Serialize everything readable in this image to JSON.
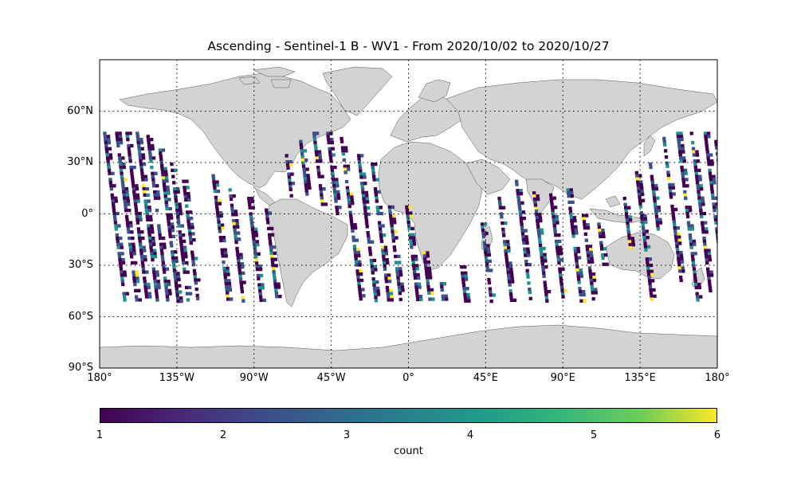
{
  "chart_data": {
    "type": "heatmap",
    "title": "Ascending - Sentinel-1 B - WV1 - From 2020/10/02 to 2020/10/27",
    "projection": "plate carree",
    "xlim": [
      -180,
      180
    ],
    "ylim": [
      -90,
      90
    ],
    "lat_ticks": [
      {
        "value": 60,
        "label": "60°N"
      },
      {
        "value": 30,
        "label": "30°N"
      },
      {
        "value": 0,
        "label": "0°"
      },
      {
        "value": -30,
        "label": "30°S"
      },
      {
        "value": -60,
        "label": "60°S"
      },
      {
        "value": -90,
        "label": "90°S"
      }
    ],
    "lon_ticks": [
      {
        "value": -180,
        "label": "180°"
      },
      {
        "value": -135,
        "label": "135°W"
      },
      {
        "value": -90,
        "label": "90°W"
      },
      {
        "value": -45,
        "label": "45°W"
      },
      {
        "value": 0,
        "label": "0°"
      },
      {
        "value": 45,
        "label": "45°E"
      },
      {
        "value": 90,
        "label": "90°E"
      },
      {
        "value": 135,
        "label": "135°E"
      },
      {
        "value": 180,
        "label": "180°"
      }
    ],
    "grid": true,
    "land_color": "#d3d3d3",
    "colormap": "viridis",
    "colorbar": {
      "min": 1,
      "max": 6,
      "ticks": [
        "1",
        "2",
        "3",
        "4",
        "5",
        "6"
      ],
      "label": "count",
      "placement": "bottom"
    },
    "data_lat_range": [
      -50,
      50
    ],
    "swaths": [
      {
        "lon": -178,
        "lat_top": 48,
        "lat_bottom": -50
      },
      {
        "lon": -171,
        "lat_top": 48,
        "lat_bottom": -50
      },
      {
        "lon": -165,
        "lat_top": 48,
        "lat_bottom": -50
      },
      {
        "lon": -159,
        "lat_top": 48,
        "lat_bottom": -50
      },
      {
        "lon": -153,
        "lat_top": 48,
        "lat_bottom": -50
      },
      {
        "lon": -146,
        "lat_top": 40,
        "lat_bottom": -50
      },
      {
        "lon": -139,
        "lat_top": 30,
        "lat_bottom": -50
      },
      {
        "lon": -132,
        "lat_top": 20,
        "lat_bottom": -50
      },
      {
        "lon": -115,
        "lat_top": 25,
        "lat_bottom": -50
      },
      {
        "lon": -105,
        "lat_top": 15,
        "lat_bottom": -50
      },
      {
        "lon": -94,
        "lat_top": 10,
        "lat_bottom": -50
      },
      {
        "lon": -84,
        "lat_top": 5,
        "lat_bottom": -50
      },
      {
        "lon": -72,
        "lat_top": 35,
        "lat_bottom": 10
      },
      {
        "lon": -64,
        "lat_top": 45,
        "lat_bottom": 12
      },
      {
        "lon": -56,
        "lat_top": 48,
        "lat_bottom": 5
      },
      {
        "lon": -48,
        "lat_top": 48,
        "lat_bottom": 0
      },
      {
        "lon": -40,
        "lat_top": 45,
        "lat_bottom": -50
      },
      {
        "lon": -30,
        "lat_top": 35,
        "lat_bottom": -50
      },
      {
        "lon": -22,
        "lat_top": 30,
        "lat_bottom": -50
      },
      {
        "lon": -12,
        "lat_top": 5,
        "lat_bottom": -50
      },
      {
        "lon": -2,
        "lat_top": 5,
        "lat_bottom": -50
      },
      {
        "lon": 8,
        "lat_top": -20,
        "lat_bottom": -50
      },
      {
        "lon": 18,
        "lat_top": -38,
        "lat_bottom": -50
      },
      {
        "lon": 30,
        "lat_top": -30,
        "lat_bottom": -50
      },
      {
        "lon": 42,
        "lat_top": -5,
        "lat_bottom": -50
      },
      {
        "lon": 52,
        "lat_top": 10,
        "lat_bottom": -50
      },
      {
        "lon": 62,
        "lat_top": 20,
        "lat_bottom": -50
      },
      {
        "lon": 72,
        "lat_top": 15,
        "lat_bottom": -50
      },
      {
        "lon": 82,
        "lat_top": 12,
        "lat_bottom": -50
      },
      {
        "lon": 92,
        "lat_top": 15,
        "lat_bottom": -50
      },
      {
        "lon": 101,
        "lat_top": 0,
        "lat_bottom": -50
      },
      {
        "lon": 110,
        "lat_top": -5,
        "lat_bottom": -30
      },
      {
        "lon": 125,
        "lat_top": 10,
        "lat_bottom": -20
      },
      {
        "lon": 132,
        "lat_top": 25,
        "lat_bottom": -50
      },
      {
        "lon": 140,
        "lat_top": 30,
        "lat_bottom": -10
      },
      {
        "lon": 148,
        "lat_top": 45,
        "lat_bottom": -40
      },
      {
        "lon": 156,
        "lat_top": 48,
        "lat_bottom": -50
      },
      {
        "lon": 164,
        "lat_top": 48,
        "lat_bottom": -45
      },
      {
        "lon": 172,
        "lat_top": 48,
        "lat_bottom": -50
      },
      {
        "lon": 178,
        "lat_top": 45,
        "lat_bottom": -30
      }
    ]
  }
}
